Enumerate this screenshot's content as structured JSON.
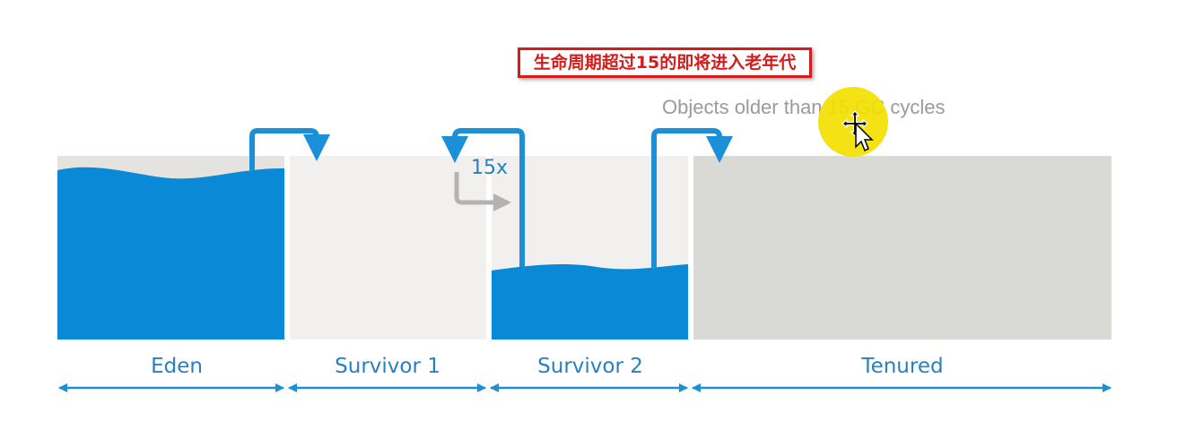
{
  "callout": {
    "text": "生命周期超过15的即将进入老年代"
  },
  "annotation": {
    "text": "Objects older than 15 GC cycles"
  },
  "cycle_label": "15x",
  "regions": [
    {
      "id": "eden",
      "label": "Eden"
    },
    {
      "id": "survivor-1",
      "label": "Survivor 1"
    },
    {
      "id": "survivor-2",
      "label": "Survivor 2"
    },
    {
      "id": "tenured",
      "label": "Tenured"
    }
  ],
  "colors": {
    "water": "#0a8ad6",
    "arrow_blue": "#1b8fd8",
    "region_light": "#f1f0ee",
    "eden_top": "#e4e3e0",
    "tenured": "#d9d9d6",
    "label_blue": "#2a7fc0",
    "gray_arrow": "#b3b3b3",
    "annotation_text": "#9a9a9a",
    "cursor_highlight": "#f3e000",
    "callout_red": "#d41c1c"
  },
  "icons": [
    "double-arrow-icon",
    "move-cursor-icon",
    "pointer-cursor-icon"
  ]
}
